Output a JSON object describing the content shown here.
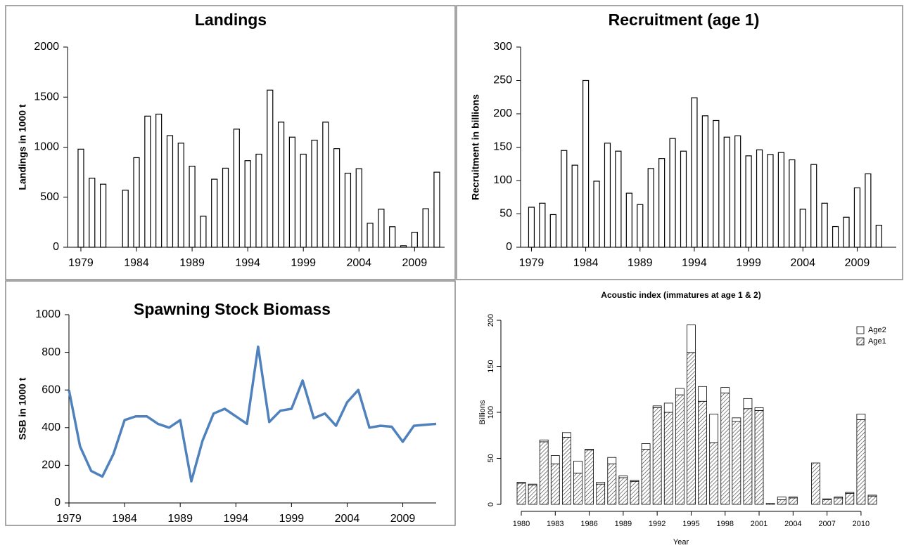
{
  "chart_data": [
    {
      "type": "bar",
      "title": "Landings",
      "ylabel": "Landings in 1000 t",
      "color": "#ffffff",
      "x": [
        1979,
        1980,
        1981,
        1982,
        1983,
        1984,
        1985,
        1986,
        1987,
        1988,
        1989,
        1990,
        1991,
        1992,
        1993,
        1994,
        1995,
        1996,
        1997,
        1998,
        1999,
        2000,
        2001,
        2002,
        2003,
        2004,
        2005,
        2006,
        2007,
        2008,
        2009,
        2010,
        2011
      ],
      "values": [
        980,
        690,
        630,
        null,
        570,
        895,
        1310,
        1330,
        1115,
        1040,
        810,
        310,
        680,
        790,
        1180,
        865,
        930,
        1570,
        1250,
        1100,
        930,
        1070,
        1250,
        985,
        740,
        785,
        240,
        380,
        205,
        15,
        150,
        385,
        750
      ],
      "xlim": [
        1977.8,
        2011.7
      ],
      "xticks": [
        1979,
        1984,
        1989,
        1994,
        1999,
        2004,
        2009
      ],
      "ylim": [
        0,
        2000
      ],
      "yticks": [
        0,
        500,
        1000,
        1500,
        2000
      ]
    },
    {
      "type": "bar",
      "title": "Recruitment (age 1)",
      "ylabel": "Recruitment in billions",
      "color": "#ffffff",
      "x": [
        1979,
        1980,
        1981,
        1982,
        1983,
        1984,
        1985,
        1986,
        1987,
        1988,
        1989,
        1990,
        1991,
        1992,
        1993,
        1994,
        1995,
        1996,
        1997,
        1998,
        1999,
        2000,
        2001,
        2002,
        2003,
        2004,
        2005,
        2006,
        2007,
        2008,
        2009,
        2010,
        2011
      ],
      "values": [
        60,
        66,
        49,
        145,
        123,
        250,
        99,
        156,
        144,
        81,
        64,
        118,
        133,
        163,
        144,
        224,
        197,
        190,
        165,
        167,
        137,
        146,
        139,
        142,
        131,
        57,
        124,
        66,
        31,
        45,
        89,
        110,
        33
      ],
      "xlim": [
        1978,
        2012.6
      ],
      "xticks": [
        1979,
        1984,
        1989,
        1994,
        1999,
        2004,
        2009
      ],
      "ylim": [
        0,
        300
      ],
      "yticks": [
        0,
        50,
        100,
        150,
        200,
        250,
        300
      ]
    },
    {
      "type": "line",
      "title": "Spawning Stock Biomass",
      "ylabel": "SSB in 1000 t",
      "color": "#4f81bd",
      "x": [
        1979,
        1980,
        1981,
        1982,
        1983,
        1984,
        1985,
        1986,
        1987,
        1988,
        1989,
        1990,
        1991,
        1992,
        1993,
        1994,
        1995,
        1996,
        1997,
        1998,
        1999,
        2000,
        2001,
        2002,
        2003,
        2004,
        2005,
        2006,
        2007,
        2008,
        2009,
        2010,
        2011,
        2012
      ],
      "values": [
        600,
        300,
        170,
        140,
        260,
        440,
        460,
        460,
        420,
        400,
        440,
        115,
        330,
        475,
        500,
        460,
        420,
        830,
        430,
        490,
        500,
        650,
        450,
        475,
        410,
        535,
        600,
        400,
        410,
        405,
        325,
        410,
        415,
        420
      ],
      "xlim": [
        1979,
        2012
      ],
      "xticks": [
        1979,
        1984,
        1989,
        1994,
        1999,
        2004,
        2009
      ],
      "ylim": [
        0,
        1000
      ],
      "yticks": [
        0,
        200,
        400,
        600,
        800,
        1000
      ]
    },
    {
      "type": "stacked_bar",
      "title": "Acoustic index (immatures at age 1 & 2)",
      "xlabel": "Year",
      "ylabel": "Billions",
      "legend": "top-right",
      "x": [
        1980,
        1981,
        1982,
        1983,
        1984,
        1985,
        1986,
        1987,
        1988,
        1989,
        1990,
        1991,
        1992,
        1993,
        1994,
        1995,
        1996,
        1997,
        1998,
        1999,
        2000,
        2001,
        2002,
        2003,
        2004,
        2005,
        2006,
        2007,
        2008,
        2009,
        2010,
        2011
      ],
      "series": [
        {
          "name": "Age2",
          "color": "#ffffff",
          "values": [
            1,
            1,
            2,
            9,
            5,
            13,
            1,
            2,
            7,
            2,
            1,
            6,
            2,
            10,
            7,
            30,
            16,
            31,
            6,
            4,
            11,
            3,
            0,
            3,
            1,
            null,
            0,
            1,
            1,
            1,
            6,
            1
          ]
        },
        {
          "name": "Age1",
          "color": "#333333",
          "pattern": "hatch",
          "values": [
            23,
            21,
            68,
            44,
            73,
            34,
            59,
            22,
            44,
            29,
            25,
            60,
            105,
            100,
            119,
            165,
            112,
            67,
            121,
            90,
            104,
            102,
            1,
            5,
            7,
            null,
            45,
            5,
            7,
            12,
            92,
            9
          ]
        }
      ],
      "stack_order": [
        "Age1",
        "Age2"
      ],
      "xlim": [
        1979.3,
        2011.7
      ],
      "xticks": [
        1980,
        1983,
        1986,
        1989,
        1992,
        1995,
        1998,
        2001,
        2004,
        2007,
        2010
      ],
      "ylim": [
        0,
        200
      ],
      "yticks": [
        0,
        50,
        100,
        150,
        200
      ]
    }
  ]
}
